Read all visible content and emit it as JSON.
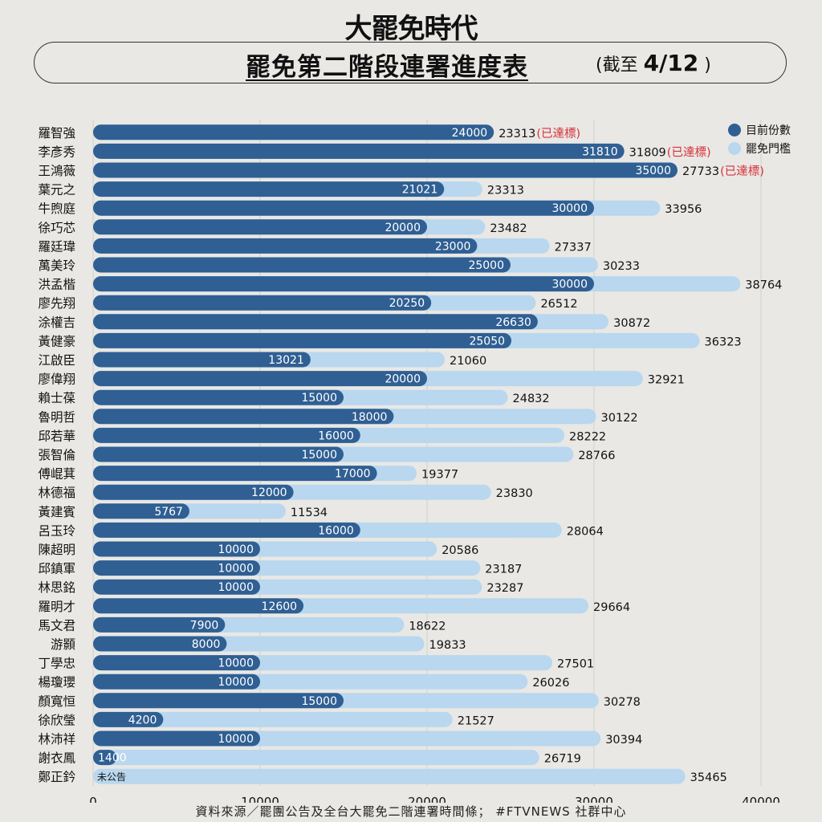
{
  "header": {
    "brand": "大罷免時代",
    "title": "罷免第二階段連署進度表",
    "date_prefix": "(截至 ",
    "date": "4/12",
    "date_suffix": " )"
  },
  "source": "資料來源／罷團公告及全台大罷免二階連署時間條； #FTVNEWS 社群中心",
  "colors": {
    "current": "#2f5f93",
    "threshold": "#b9d7ee",
    "reached": "#d8323a",
    "background": "#e9e8e5"
  },
  "chart_data": {
    "type": "bar",
    "orientation": "horizontal",
    "xlim": [
      0,
      40000
    ],
    "xticks": [
      0,
      10000,
      20000,
      30000,
      40000
    ],
    "legend": {
      "position": "top-right",
      "entries": [
        {
          "name": "目前份數",
          "color": "#2f5f93"
        },
        {
          "name": "罷免門檻",
          "color": "#b9d7ee"
        }
      ]
    },
    "reached_text": "(已達標)",
    "no_data_text": "未公告",
    "categories": [
      "羅智強",
      "李彥秀",
      "王鴻薇",
      "葉元之",
      "牛煦庭",
      "徐巧芯",
      "羅廷瑋",
      "萬美玲",
      "洪孟楷",
      "廖先翔",
      "涂權吉",
      "黃健豪",
      "江啟臣",
      "廖偉翔",
      "賴士葆",
      "魯明哲",
      "邱若華",
      "張智倫",
      "傅崐萁",
      "林德福",
      "黃建賓",
      "呂玉玲",
      "陳超明",
      "邱鎮軍",
      "林思銘",
      "羅明才",
      "馬文君",
      "游顥",
      "丁學忠",
      "楊瓊瓔",
      "顏寬恒",
      "徐欣瑩",
      "林沛祥",
      "謝衣鳳",
      "鄭正鈐"
    ],
    "series": [
      {
        "name": "目前份數",
        "values": [
          24000,
          31810,
          35000,
          21021,
          30000,
          20000,
          23000,
          25000,
          30000,
          20250,
          26630,
          25050,
          13021,
          20000,
          15000,
          18000,
          16000,
          15000,
          17000,
          12000,
          5767,
          16000,
          10000,
          10000,
          10000,
          12600,
          7900,
          8000,
          10000,
          10000,
          15000,
          4200,
          10000,
          1400,
          null
        ]
      },
      {
        "name": "罷免門檻",
        "values": [
          23313,
          31809,
          27733,
          23313,
          33956,
          23482,
          27337,
          30233,
          38764,
          26512,
          30872,
          36323,
          21060,
          32921,
          24832,
          30122,
          28222,
          28766,
          19377,
          23830,
          11534,
          28064,
          20586,
          23187,
          23287,
          29664,
          18622,
          19833,
          27501,
          26026,
          30278,
          21527,
          30394,
          26719,
          35465
        ]
      }
    ]
  }
}
